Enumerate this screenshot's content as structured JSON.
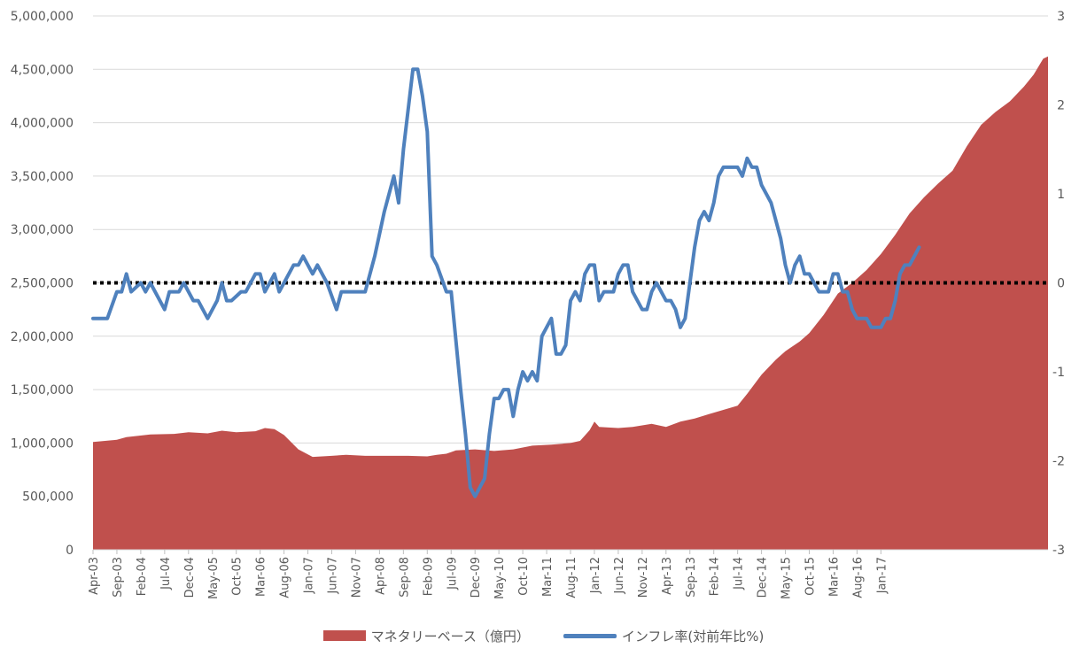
{
  "chart_data": {
    "type": "area-line-combo",
    "title": "",
    "grid": true,
    "legend_position": "bottom",
    "colors": {
      "area": "#c0504d",
      "line": "#4f81bd",
      "zero_line": "#000000",
      "grid": "#d9d9d9"
    },
    "left_axis": {
      "min": 0,
      "max": 5000000,
      "ticks": [
        "0",
        "500,000",
        "1,000,000",
        "1,500,000",
        "2,000,000",
        "2,500,000",
        "3,000,000",
        "3,500,000",
        "4,000,000",
        "4,500,000",
        "5,000,000"
      ]
    },
    "right_axis": {
      "min": -3,
      "max": 3,
      "ticks": [
        "-3",
        "-2",
        "-1",
        "0",
        "1",
        "2",
        "3"
      ]
    },
    "x_tick_labels": [
      "Apr-03",
      "Sep-03",
      "Feb-04",
      "Jul-04",
      "Dec-04",
      "May-05",
      "Oct-05",
      "Mar-06",
      "Aug-06",
      "Jan-07",
      "Jun-07",
      "Nov-07",
      "Apr-08",
      "Sep-08",
      "Feb-09",
      "Jul-09",
      "Dec-09",
      "May-10",
      "Oct-10",
      "Mar-11",
      "Aug-11",
      "Jan-12",
      "Jun-12",
      "Nov-12",
      "Apr-13",
      "Sep-13",
      "Feb-14",
      "Jul-14",
      "Dec-14",
      "May-15",
      "Oct-15",
      "Mar-16",
      "Aug-16",
      "Jan-17"
    ],
    "series": [
      {
        "name": "マネタリーベース（億円）",
        "kind": "area",
        "axis": "left",
        "anchors": [
          [
            0,
            1010000
          ],
          [
            5,
            1030000
          ],
          [
            7,
            1055000
          ],
          [
            12,
            1080000
          ],
          [
            17,
            1085000
          ],
          [
            20,
            1100000
          ],
          [
            24,
            1090000
          ],
          [
            27,
            1115000
          ],
          [
            30,
            1100000
          ],
          [
            34,
            1110000
          ],
          [
            36,
            1140000
          ],
          [
            38,
            1130000
          ],
          [
            40,
            1075000
          ],
          [
            43,
            940000
          ],
          [
            46,
            870000
          ],
          [
            50,
            880000
          ],
          [
            53,
            890000
          ],
          [
            57,
            880000
          ],
          [
            62,
            880000
          ],
          [
            66,
            880000
          ],
          [
            70,
            875000
          ],
          [
            72,
            890000
          ],
          [
            74,
            900000
          ],
          [
            76,
            930000
          ],
          [
            80,
            940000
          ],
          [
            84,
            925000
          ],
          [
            88,
            940000
          ],
          [
            92,
            975000
          ],
          [
            96,
            985000
          ],
          [
            100,
            1000000
          ],
          [
            102,
            1020000
          ],
          [
            104,
            1120000
          ],
          [
            105,
            1200000
          ],
          [
            106,
            1150000
          ],
          [
            110,
            1140000
          ],
          [
            113,
            1150000
          ],
          [
            117,
            1180000
          ],
          [
            120,
            1150000
          ],
          [
            123,
            1200000
          ],
          [
            126,
            1230000
          ],
          [
            129,
            1270000
          ],
          [
            132,
            1310000
          ],
          [
            135,
            1350000
          ],
          [
            137,
            1460000
          ],
          [
            140,
            1640000
          ],
          [
            143,
            1780000
          ],
          [
            145,
            1860000
          ],
          [
            148,
            1950000
          ],
          [
            150,
            2030000
          ],
          [
            153,
            2200000
          ],
          [
            156,
            2400000
          ],
          [
            159,
            2500000
          ],
          [
            162,
            2620000
          ],
          [
            165,
            2770000
          ],
          [
            168,
            2950000
          ],
          [
            171,
            3150000
          ],
          [
            174,
            3300000
          ],
          [
            177,
            3430000
          ],
          [
            180,
            3550000
          ],
          [
            183,
            3780000
          ],
          [
            186,
            3980000
          ],
          [
            189,
            4100000
          ],
          [
            192,
            4200000
          ],
          [
            195,
            4340000
          ],
          [
            197,
            4450000
          ],
          [
            199,
            4600000
          ],
          [
            200,
            4620000
          ]
        ]
      },
      {
        "name": "インフレ率(対前年比%)",
        "kind": "line",
        "axis": "right",
        "anchors": [
          [
            0,
            -0.4
          ],
          [
            3,
            -0.4
          ],
          [
            5,
            -0.1
          ],
          [
            6,
            -0.1
          ],
          [
            7,
            0.1
          ],
          [
            8,
            -0.1
          ],
          [
            10,
            0.0
          ],
          [
            11,
            -0.1
          ],
          [
            12,
            0.0
          ],
          [
            15,
            -0.3
          ],
          [
            16,
            -0.1
          ],
          [
            18,
            -0.1
          ],
          [
            19,
            0.0
          ],
          [
            21,
            -0.2
          ],
          [
            22,
            -0.2
          ],
          [
            24,
            -0.4
          ],
          [
            26,
            -0.2
          ],
          [
            27,
            0.0
          ],
          [
            28,
            -0.2
          ],
          [
            29,
            -0.2
          ],
          [
            31,
            -0.1
          ],
          [
            32,
            -0.1
          ],
          [
            34,
            0.1
          ],
          [
            35,
            0.1
          ],
          [
            36,
            -0.1
          ],
          [
            37,
            0.0
          ],
          [
            38,
            0.1
          ],
          [
            39,
            -0.1
          ],
          [
            40,
            0.0
          ],
          [
            42,
            0.2
          ],
          [
            43,
            0.2
          ],
          [
            44,
            0.3
          ],
          [
            46,
            0.1
          ],
          [
            47,
            0.2
          ],
          [
            49,
            0.0
          ],
          [
            51,
            -0.3
          ],
          [
            52,
            -0.1
          ],
          [
            54,
            -0.1
          ],
          [
            57,
            -0.1
          ],
          [
            59,
            0.3
          ],
          [
            61,
            0.8
          ],
          [
            63,
            1.2
          ],
          [
            64,
            0.9
          ],
          [
            65,
            1.5
          ],
          [
            67,
            2.4
          ],
          [
            68,
            2.4
          ],
          [
            69,
            2.1
          ],
          [
            70,
            1.7
          ],
          [
            71,
            0.3
          ],
          [
            72,
            0.2
          ],
          [
            74,
            -0.1
          ],
          [
            75,
            -0.1
          ],
          [
            77,
            -1.2
          ],
          [
            78,
            -1.7
          ],
          [
            79,
            -2.3
          ],
          [
            80,
            -2.4
          ],
          [
            82,
            -2.2
          ],
          [
            83,
            -1.7
          ],
          [
            84,
            -1.3
          ],
          [
            85,
            -1.3
          ],
          [
            86,
            -1.2
          ],
          [
            87,
            -1.2
          ],
          [
            88,
            -1.5
          ],
          [
            89,
            -1.2
          ],
          [
            90,
            -1.0
          ],
          [
            91,
            -1.1
          ],
          [
            92,
            -1.0
          ],
          [
            93,
            -1.1
          ],
          [
            94,
            -0.6
          ],
          [
            95,
            -0.5
          ],
          [
            96,
            -0.4
          ],
          [
            97,
            -0.8
          ],
          [
            98,
            -0.8
          ],
          [
            99,
            -0.7
          ],
          [
            100,
            -0.2
          ],
          [
            101,
            -0.1
          ],
          [
            102,
            -0.2
          ],
          [
            103,
            0.1
          ],
          [
            104,
            0.2
          ],
          [
            105,
            0.2
          ],
          [
            106,
            -0.2
          ],
          [
            107,
            -0.1
          ],
          [
            109,
            -0.1
          ],
          [
            110,
            0.1
          ],
          [
            111,
            0.2
          ],
          [
            112,
            0.2
          ],
          [
            113,
            -0.1
          ],
          [
            114,
            -0.2
          ],
          [
            115,
            -0.3
          ],
          [
            116,
            -0.3
          ],
          [
            117,
            -0.1
          ],
          [
            118,
            0.0
          ],
          [
            119,
            -0.1
          ],
          [
            120,
            -0.2
          ],
          [
            121,
            -0.2
          ],
          [
            122,
            -0.3
          ],
          [
            123,
            -0.5
          ],
          [
            124,
            -0.4
          ],
          [
            126,
            0.4
          ],
          [
            127,
            0.7
          ],
          [
            128,
            0.8
          ],
          [
            129,
            0.7
          ],
          [
            130,
            0.9
          ],
          [
            131,
            1.2
          ],
          [
            132,
            1.3
          ],
          [
            135,
            1.3
          ],
          [
            136,
            1.2
          ],
          [
            137,
            1.4
          ],
          [
            138,
            1.3
          ],
          [
            139,
            1.3
          ],
          [
            140,
            1.1
          ],
          [
            142,
            0.9
          ],
          [
            143,
            0.7
          ],
          [
            144,
            0.5
          ],
          [
            145,
            0.2
          ],
          [
            146,
            0.0
          ],
          [
            147,
            0.2
          ],
          [
            148,
            0.3
          ],
          [
            149,
            0.1
          ],
          [
            150,
            0.1
          ],
          [
            152,
            -0.1
          ],
          [
            154,
            -0.1
          ],
          [
            155,
            0.1
          ],
          [
            156,
            0.1
          ],
          [
            157,
            -0.1
          ],
          [
            158,
            -0.1
          ],
          [
            159,
            -0.3
          ],
          [
            160,
            -0.4
          ],
          [
            162,
            -0.4
          ],
          [
            163,
            -0.5
          ],
          [
            165,
            -0.5
          ],
          [
            166,
            -0.4
          ],
          [
            167,
            -0.4
          ],
          [
            168,
            -0.2
          ],
          [
            169,
            0.1
          ],
          [
            170,
            0.2
          ],
          [
            171,
            0.2
          ],
          [
            172,
            0.3
          ],
          [
            173,
            0.4
          ]
        ]
      }
    ],
    "reference_line": {
      "axis": "right",
      "value": 0,
      "style": "dotted"
    }
  },
  "legend": {
    "area_label": "マネタリーベース（億円）",
    "line_label": "インフレ率(対前年比%)"
  }
}
